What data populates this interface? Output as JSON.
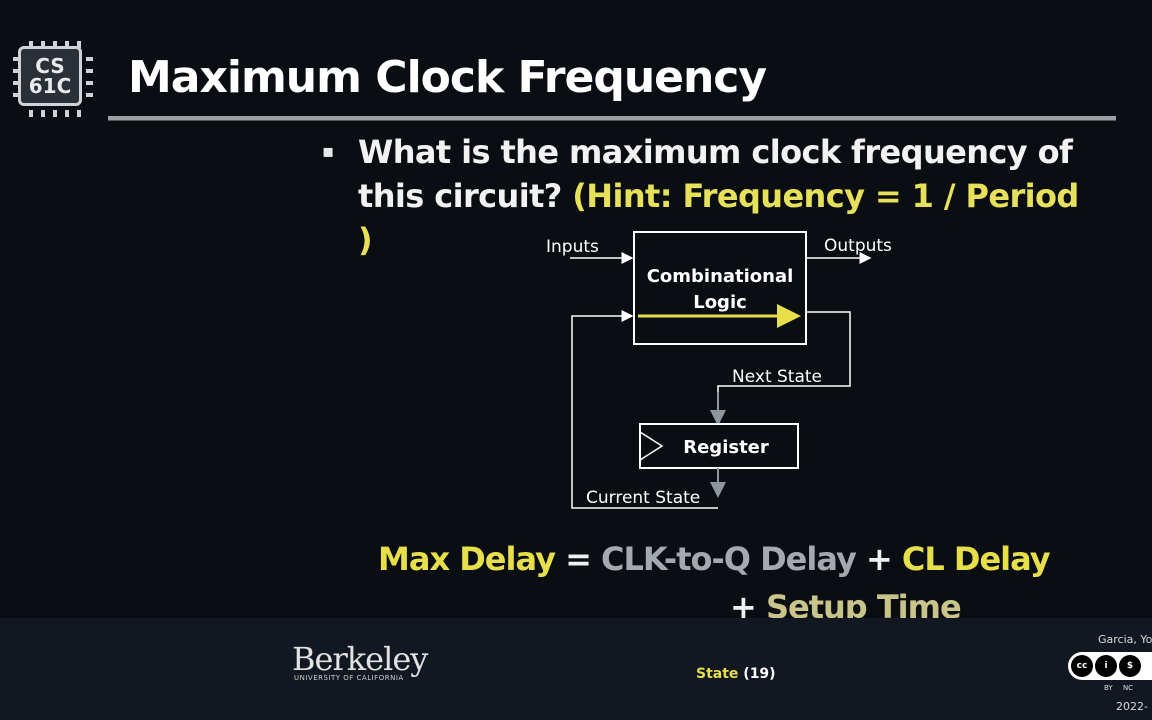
{
  "logo": {
    "line1": "CS",
    "line2": "61C"
  },
  "slide": {
    "title": "Maximum Clock Frequency",
    "bullet": "▪",
    "question": "What is the maximum clock frequency of this circuit?",
    "hint": "(Hint: Frequency = 1 / Period )"
  },
  "diagram": {
    "inputs": "Inputs",
    "outputs": "Outputs",
    "cl_line1": "Combinational",
    "cl_line2": "Logic",
    "next_state": "Next State",
    "register": "Register",
    "current_state": "Current State"
  },
  "formula": {
    "lhs": "Max Delay",
    "eq": "=",
    "clk_to_q": "CLK-to-Q Delay",
    "plus1": "+",
    "cl_delay": "CL Delay",
    "plus2": "+",
    "setup_time": "Setup Time"
  },
  "footer": {
    "university": "Berkeley",
    "university_sub": "UNIVERSITY OF CALIFORNIA",
    "topic": "State",
    "page": "(19)",
    "author": "Garcia, Yo",
    "cc_by": "BY",
    "cc_nc": "NC",
    "year": "2022-"
  },
  "colors": {
    "accent_yellow": "#e6df4a",
    "muted_gray": "#a4a9b0",
    "background": "#0a0d12"
  }
}
